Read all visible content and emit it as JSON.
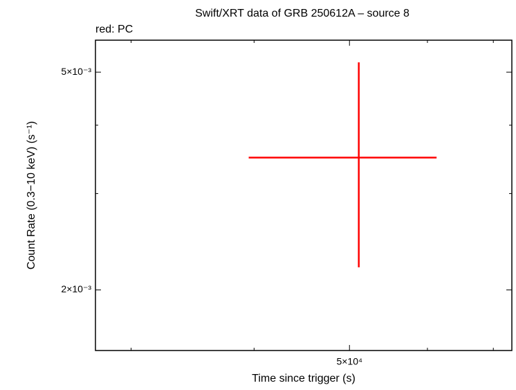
{
  "chart_data": {
    "type": "errorbar",
    "title": "Swift/XRT data of GRB 250612A – source 8",
    "subtitle": "red: PC",
    "x_label": "Time since trigger (s)",
    "y_label": "Count Rate (0.3−10 keV) (s⁻¹)",
    "xlog": true,
    "ylog": true,
    "xlim": [
      27600,
      73100
    ],
    "ylim": [
      0.00155,
      0.00572
    ],
    "xticks": [
      {
        "value": 50000,
        "label": "5×10⁴"
      }
    ],
    "xminor": [
      30000,
      40000,
      60000,
      70000
    ],
    "yticks": [
      {
        "value": 0.002,
        "label": "2×10⁻³"
      },
      {
        "value": 0.005,
        "label": "5×10⁻³"
      }
    ],
    "yminor": [
      0.003,
      0.004
    ],
    "series": [
      {
        "name": "PC",
        "color": "#ff0000",
        "x": [
          51100
        ],
        "x_low": [
          39500
        ],
        "x_high": [
          61300
        ],
        "values": [
          0.00349
        ],
        "y_low": [
          0.0022
        ],
        "y_high": [
          0.00521
        ]
      }
    ]
  }
}
